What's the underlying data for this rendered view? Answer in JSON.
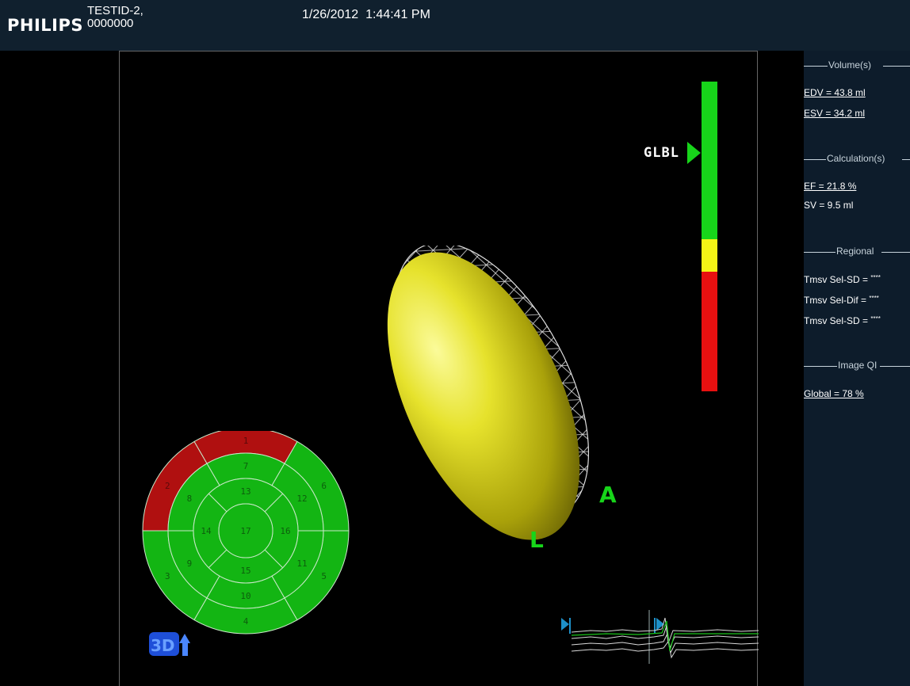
{
  "header": {
    "logo": "PHILIPS",
    "patient_id_line1": "TESTID-2,",
    "patient_id_line2": "0000000",
    "datetime": "1/26/2012  1:44:41 PM"
  },
  "panel": {
    "volume": {
      "heading": "Volume(s)",
      "edv": "EDV = 43.8 ml",
      "esv": "ESV = 34.2 ml"
    },
    "calculation": {
      "heading": "Calculation(s)",
      "ef": "EF = 21.8 %",
      "sv": "SV = 9.5 ml"
    },
    "regional": {
      "heading": "Regional",
      "rows": [
        {
          "label": "Tmsv Sel-SD = ",
          "value": "****"
        },
        {
          "label": "Tmsv Sel-Dif = ",
          "value": "****"
        },
        {
          "label": "Tmsv Sel-SD = ",
          "value": "****"
        }
      ]
    },
    "image_qi": {
      "heading": "Image QI",
      "global": "Global = 78 %"
    }
  },
  "gauge": {
    "label": "GLBL",
    "colors": {
      "green": "#17d51a",
      "yellow": "#f5f516",
      "red": "#e81010"
    }
  },
  "orientation": {
    "a": "A",
    "l": "L"
  },
  "bullseye": {
    "segments": [
      "1",
      "2",
      "3",
      "4",
      "5",
      "6",
      "7",
      "8",
      "9",
      "10",
      "11",
      "12",
      "13",
      "14",
      "15",
      "16",
      "17"
    ],
    "red_segments": [
      "1",
      "2"
    ],
    "colors": {
      "normal": "#13b513",
      "highlight": "#b01010",
      "lines": "#c9e8c9"
    }
  },
  "icons": {
    "view_cube": "3d-view-icon",
    "left_marker": "ecg-left-marker-icon",
    "right_marker": "ecg-right-marker-icon"
  }
}
